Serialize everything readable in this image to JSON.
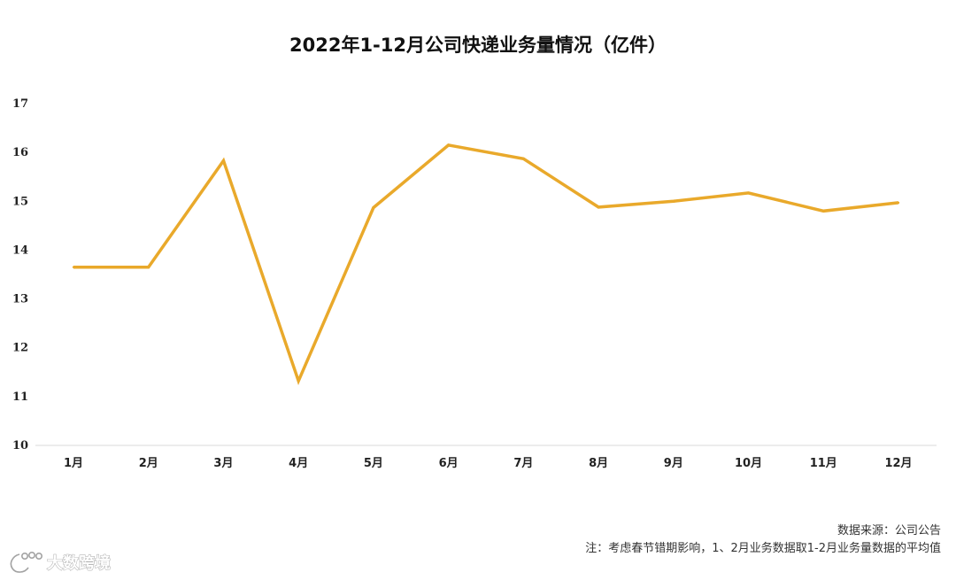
{
  "chart_data": {
    "type": "line",
    "title": "2022年1-12月公司快递业务量情况（亿件）",
    "categories": [
      "1月",
      "2月",
      "3月",
      "4月",
      "5月",
      "6月",
      "7月",
      "8月",
      "9月",
      "10月",
      "11月",
      "12月"
    ],
    "series": [
      {
        "values": [
          13.65,
          13.65,
          15.83,
          11.32,
          14.87,
          16.15,
          15.87,
          14.88,
          15.0,
          15.17,
          14.8,
          14.97
        ]
      }
    ],
    "yticks": [
      "10",
      "11",
      "12",
      "13",
      "14",
      "15",
      "16",
      "17"
    ],
    "ylim": [
      10,
      17
    ],
    "grid": false,
    "legend": "none",
    "line_color": "#E9A92B",
    "source": "数据来源：公司公告",
    "note": "注：考虑春节错期影响，1、2月业务数据取1-2月业务量数据的平均值"
  },
  "watermark": {
    "text": "大数跨境"
  }
}
